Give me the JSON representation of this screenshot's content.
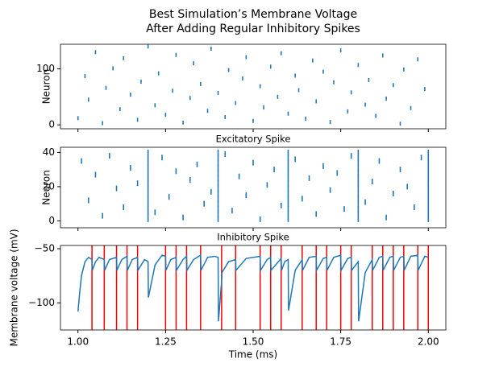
{
  "chart_data": [
    {
      "type": "scatter",
      "title": [
        "Best Simulation’s Membrane Voltage",
        "After Adding Regular Inhibitory Spikes"
      ],
      "ylabel": "Neuron",
      "color": "#1f77b4",
      "marker": "|",
      "xlim": [
        0.95,
        2.05
      ],
      "ylim": [
        -7,
        144
      ],
      "yticks": [
        0,
        100
      ],
      "x": [
        1.0,
        1.02,
        1.03,
        1.05,
        1.07,
        1.08,
        1.1,
        1.12,
        1.13,
        1.15,
        1.17,
        1.18,
        1.2,
        1.22,
        1.23,
        1.25,
        1.27,
        1.28,
        1.3,
        1.32,
        1.33,
        1.35,
        1.37,
        1.38,
        1.4,
        1.42,
        1.43,
        1.45,
        1.47,
        1.48,
        1.5,
        1.52,
        1.53,
        1.55,
        1.57,
        1.58,
        1.6,
        1.62,
        1.63,
        1.65,
        1.67,
        1.68,
        1.7,
        1.72,
        1.73,
        1.75,
        1.77,
        1.78,
        1.8,
        1.82,
        1.83,
        1.85,
        1.87,
        1.88,
        1.9,
        1.92,
        1.93,
        1.95,
        1.97,
        1.99
      ],
      "values": [
        12,
        87,
        45,
        130,
        3,
        66,
        101,
        28,
        119,
        54,
        9,
        77,
        140,
        35,
        92,
        18,
        61,
        125,
        4,
        48,
        110,
        73,
        25,
        136,
        57,
        14,
        98,
        39,
        83,
        121,
        7,
        69,
        31,
        104,
        50,
        128,
        20,
        88,
        62,
        11,
        115,
        42,
        95,
        5,
        76,
        133,
        24,
        58,
        107,
        36,
        80,
        16,
        124,
        47,
        71,
        2,
        99,
        30,
        117,
        64
      ]
    },
    {
      "type": "scatter",
      "title": "Excitatory Spike",
      "ylabel": "Neuron",
      "color": "#1f77b4",
      "marker": "|",
      "xlim": [
        0.95,
        2.05
      ],
      "ylim": [
        -4,
        43
      ],
      "yticks": [
        0,
        20,
        40
      ],
      "x": [
        1.01,
        1.03,
        1.05,
        1.07,
        1.09,
        1.11,
        1.13,
        1.15,
        1.17,
        1.22,
        1.24,
        1.26,
        1.28,
        1.3,
        1.32,
        1.34,
        1.36,
        1.38,
        1.42,
        1.44,
        1.46,
        1.48,
        1.5,
        1.52,
        1.54,
        1.56,
        1.58,
        1.62,
        1.64,
        1.66,
        1.68,
        1.7,
        1.72,
        1.74,
        1.76,
        1.78,
        1.82,
        1.84,
        1.86,
        1.88,
        1.9,
        1.92,
        1.94,
        1.96,
        1.98,
        1.2,
        1.2,
        1.2,
        1.2,
        1.2,
        1.2,
        1.2,
        1.2,
        1.2,
        1.2,
        1.2,
        1.2,
        1.2,
        1.2,
        1.4,
        1.4,
        1.4,
        1.4,
        1.4,
        1.4,
        1.4,
        1.4,
        1.4,
        1.4,
        1.4,
        1.4,
        1.4,
        1.4,
        1.6,
        1.6,
        1.6,
        1.6,
        1.6,
        1.6,
        1.6,
        1.6,
        1.6,
        1.6,
        1.6,
        1.6,
        1.6,
        1.6,
        1.8,
        1.8,
        1.8,
        1.8,
        1.8,
        1.8,
        1.8,
        1.8,
        1.8,
        1.8,
        1.8,
        1.8,
        1.8,
        1.8,
        2.0,
        2.0,
        2.0,
        2.0,
        2.0,
        2.0,
        2.0,
        2.0,
        2.0,
        2.0,
        2.0,
        2.0,
        2.0,
        2.0
      ],
      "values": [
        35,
        12,
        27,
        3,
        38,
        19,
        8,
        31,
        22,
        5,
        37,
        14,
        29,
        2,
        24,
        33,
        10,
        17,
        39,
        6,
        26,
        15,
        34,
        1,
        21,
        30,
        9,
        36,
        13,
        25,
        4,
        32,
        18,
        28,
        7,
        38,
        11,
        23,
        35,
        2,
        16,
        30,
        20,
        8,
        37,
        1,
        4,
        7,
        10,
        13,
        16,
        19,
        22,
        25,
        28,
        31,
        34,
        37,
        40,
        1,
        4,
        7,
        10,
        13,
        16,
        19,
        22,
        25,
        28,
        31,
        34,
        37,
        40,
        1,
        4,
        7,
        10,
        13,
        16,
        19,
        22,
        25,
        28,
        31,
        34,
        37,
        40,
        1,
        4,
        7,
        10,
        13,
        16,
        19,
        22,
        25,
        28,
        31,
        34,
        37,
        40,
        1,
        4,
        7,
        10,
        13,
        16,
        19,
        22,
        25,
        28,
        31,
        34,
        37,
        40
      ]
    },
    {
      "type": "line",
      "title": "Inhibitory Spike",
      "ylabel": "Membrane voltage (mV)",
      "xlabel": "Time (ms)",
      "color": "#1f77b4",
      "vline_color": "#ff0000",
      "xlim": [
        0.95,
        2.05
      ],
      "ylim": [
        -125,
        -47
      ],
      "xticks": [
        {
          "value": 1,
          "label": "1.00"
        },
        {
          "value": 1.25,
          "label": "1.25"
        },
        {
          "value": 1.5,
          "label": "1.50"
        },
        {
          "value": 1.75,
          "label": "1.75"
        },
        {
          "value": 2,
          "label": "2.00"
        }
      ],
      "yticks": [
        {
          "value": -100,
          "label": "−100"
        },
        {
          "value": -50,
          "label": "−50"
        }
      ],
      "x": [
        1.0,
        1.005,
        1.01,
        1.02,
        1.03,
        1.04,
        1.041,
        1.05,
        1.06,
        1.075,
        1.076,
        1.09,
        1.11,
        1.111,
        1.125,
        1.14,
        1.141,
        1.155,
        1.17,
        1.171,
        1.19,
        1.2,
        1.201,
        1.22,
        1.24,
        1.25,
        1.251,
        1.265,
        1.28,
        1.281,
        1.3,
        1.31,
        1.311,
        1.33,
        1.35,
        1.351,
        1.37,
        1.39,
        1.4,
        1.401,
        1.41,
        1.411,
        1.43,
        1.45,
        1.451,
        1.48,
        1.52,
        1.521,
        1.54,
        1.55,
        1.551,
        1.58,
        1.581,
        1.59,
        1.6,
        1.601,
        1.62,
        1.64,
        1.641,
        1.66,
        1.68,
        1.681,
        1.7,
        1.71,
        1.711,
        1.73,
        1.75,
        1.751,
        1.77,
        1.78,
        1.781,
        1.8,
        1.801,
        1.82,
        1.84,
        1.841,
        1.86,
        1.87,
        1.871,
        1.89,
        1.9,
        1.901,
        1.92,
        1.93,
        1.931,
        1.95,
        1.97,
        1.971,
        1.99,
        2.0
      ],
      "values": [
        -108,
        -90,
        -75,
        -62,
        -58,
        -60,
        -70,
        -62,
        -58,
        -60,
        -70,
        -60,
        -58,
        -70,
        -60,
        -57,
        -70,
        -60,
        -58,
        -70,
        -60,
        -62,
        -95,
        -65,
        -56,
        -57,
        -70,
        -60,
        -58,
        -70,
        -60,
        -57,
        -70,
        -60,
        -56,
        -70,
        -58,
        -57,
        -58,
        -117,
        -80,
        -72,
        -62,
        -60,
        -70,
        -59,
        -57,
        -70,
        -60,
        -58,
        -70,
        -59,
        -70,
        -62,
        -60,
        -107,
        -70,
        -60,
        -70,
        -58,
        -57,
        -70,
        -59,
        -58,
        -70,
        -58,
        -56,
        -70,
        -59,
        -58,
        -70,
        -62,
        -117,
        -72,
        -60,
        -70,
        -58,
        -57,
        -70,
        -58,
        -57,
        -70,
        -58,
        -57,
        -70,
        -57,
        -56,
        -70,
        -57,
        -58
      ],
      "vlines": [
        1.04,
        1.075,
        1.11,
        1.14,
        1.17,
        1.25,
        1.28,
        1.31,
        1.35,
        1.41,
        1.45,
        1.52,
        1.55,
        1.58,
        1.64,
        1.68,
        1.71,
        1.75,
        1.78,
        1.84,
        1.87,
        1.9,
        1.93,
        1.97,
        2.0
      ]
    }
  ]
}
